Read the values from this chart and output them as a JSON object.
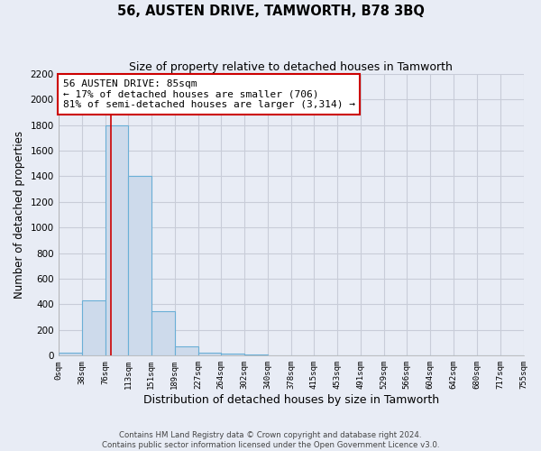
{
  "title": "56, AUSTEN DRIVE, TAMWORTH, B78 3BQ",
  "subtitle": "Size of property relative to detached houses in Tamworth",
  "xlabel": "Distribution of detached houses by size in Tamworth",
  "ylabel": "Number of detached properties",
  "footer_lines": [
    "Contains HM Land Registry data © Crown copyright and database right 2024.",
    "Contains public sector information licensed under the Open Government Licence v3.0."
  ],
  "bar_edges": [
    0,
    38,
    76,
    113,
    151,
    189,
    227,
    264,
    302,
    340,
    378,
    415,
    453,
    491,
    529,
    566,
    604,
    642,
    680,
    717,
    755
  ],
  "bar_heights": [
    20,
    430,
    1800,
    1400,
    350,
    75,
    25,
    15,
    10,
    5,
    0,
    0,
    0,
    0,
    0,
    0,
    0,
    0,
    0,
    0
  ],
  "bar_color": "#cddaeb",
  "bar_edge_color": "#6aafd6",
  "property_line_x": 85,
  "property_line_color": "#cc0000",
  "ylim": [
    0,
    2200
  ],
  "yticks": [
    0,
    200,
    400,
    600,
    800,
    1000,
    1200,
    1400,
    1600,
    1800,
    2000,
    2200
  ],
  "xtick_labels": [
    "0sqm",
    "38sqm",
    "76sqm",
    "113sqm",
    "151sqm",
    "189sqm",
    "227sqm",
    "264sqm",
    "302sqm",
    "340sqm",
    "378sqm",
    "415sqm",
    "453sqm",
    "491sqm",
    "529sqm",
    "566sqm",
    "604sqm",
    "642sqm",
    "680sqm",
    "717sqm",
    "755sqm"
  ],
  "annotation_box_text": "56 AUSTEN DRIVE: 85sqm\n← 17% of detached houses are smaller (706)\n81% of semi-detached houses are larger (3,314) →",
  "annotation_box_color": "#ffffff",
  "annotation_box_edge_color": "#cc0000",
  "bg_color": "#e8ecf5",
  "grid_color": "#c8ccd8",
  "figsize": [
    6.0,
    5.0
  ],
  "dpi": 100
}
